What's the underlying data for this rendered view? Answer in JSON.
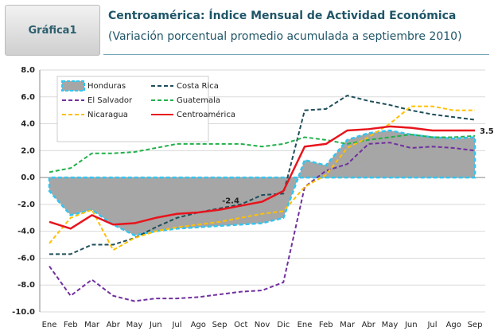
{
  "header": {
    "label": "Gráfica1"
  },
  "chart_data": {
    "type": "line",
    "title": "Centroamérica: Índice Mensual de Actividad Económica",
    "subtitle": "(Variación porcentual promedio acumulada a septiembre 2010)",
    "categories": [
      "Ene",
      "Feb",
      "Mar",
      "Abr",
      "May",
      "Jun",
      "Jul",
      "Ago",
      "Sep",
      "Oct",
      "Nov",
      "Dic",
      "Ene",
      "Feb",
      "Mar",
      "Abr",
      "May",
      "Jun",
      "Jul",
      "Ago",
      "Sep"
    ],
    "ylim": [
      -10,
      8
    ],
    "yticks": [
      {
        "value": -10,
        "label": "-10.0"
      },
      {
        "value": -8,
        "label": "-8.0"
      },
      {
        "value": -6,
        "label": "-6.0"
      },
      {
        "value": -4,
        "label": "-4.0"
      },
      {
        "value": -2,
        "label": "-2.0"
      },
      {
        "value": 0,
        "label": "0.0"
      },
      {
        "value": 2,
        "label": "2.0"
      },
      {
        "value": 4,
        "label": "4.0"
      },
      {
        "value": 6,
        "label": "6.0"
      },
      {
        "value": 8,
        "label": "8.0"
      }
    ],
    "grid": true,
    "legend": "top-left",
    "series": [
      {
        "name": "Honduras",
        "color": "#a6a6a6",
        "style": "area",
        "values": [
          -1.0,
          -2.8,
          -2.4,
          -3.5,
          -4.3,
          -4.0,
          -3.8,
          -3.7,
          -3.6,
          -3.5,
          -3.4,
          -3.0,
          1.3,
          0.9,
          2.8,
          3.3,
          3.5,
          3.2,
          3.0,
          2.9,
          3.0
        ]
      },
      {
        "name": "Costa Rica",
        "color": "#1f4e5a",
        "style": "dashed",
        "values": [
          -5.7,
          -5.7,
          -5.0,
          -5.0,
          -4.5,
          -3.7,
          -3.0,
          -2.6,
          -2.3,
          -2.0,
          -1.3,
          -1.2,
          5.0,
          5.1,
          6.1,
          5.7,
          5.4,
          5.0,
          4.7,
          4.5,
          4.3
        ]
      },
      {
        "name": "El Salvador",
        "color": "#7030a0",
        "style": "dashed",
        "values": [
          -6.6,
          -8.8,
          -7.6,
          -8.8,
          -9.2,
          -9.0,
          -9.0,
          -8.9,
          -8.7,
          -8.5,
          -8.4,
          -7.8,
          -0.7,
          0.5,
          1.0,
          2.5,
          2.6,
          2.2,
          2.3,
          2.2,
          2.0
        ]
      },
      {
        "name": "Guatemala",
        "color": "#21b04b",
        "style": "dashed",
        "values": [
          0.4,
          0.7,
          1.8,
          1.8,
          1.9,
          2.2,
          2.5,
          2.5,
          2.5,
          2.5,
          2.3,
          2.5,
          3.0,
          2.8,
          2.5,
          2.8,
          3.0,
          3.2,
          3.0,
          3.0,
          3.1
        ]
      },
      {
        "name": "Nicaragua",
        "color": "#ffc000",
        "style": "dashed",
        "values": [
          -4.9,
          -3.0,
          -2.4,
          -5.4,
          -4.5,
          -4.0,
          -3.7,
          -3.5,
          -3.3,
          -3.0,
          -2.7,
          -2.5,
          -0.7,
          0.2,
          2.2,
          3.0,
          4.0,
          5.3,
          5.3,
          5.0,
          5.0
        ]
      },
      {
        "name": "Centroamérica",
        "color": "#e8141c",
        "style": "solid",
        "values": [
          -3.3,
          -3.8,
          -2.8,
          -3.5,
          -3.4,
          -3.0,
          -2.7,
          -2.6,
          -2.4,
          -2.1,
          -1.8,
          -1.0,
          2.3,
          2.5,
          3.5,
          3.6,
          3.8,
          3.7,
          3.5,
          3.5,
          3.5
        ],
        "value_labels": [
          null,
          null,
          null,
          null,
          null,
          null,
          null,
          null,
          "-2.4",
          null,
          null,
          null,
          null,
          null,
          null,
          null,
          null,
          null,
          null,
          null,
          "3.5"
        ]
      }
    ]
  }
}
